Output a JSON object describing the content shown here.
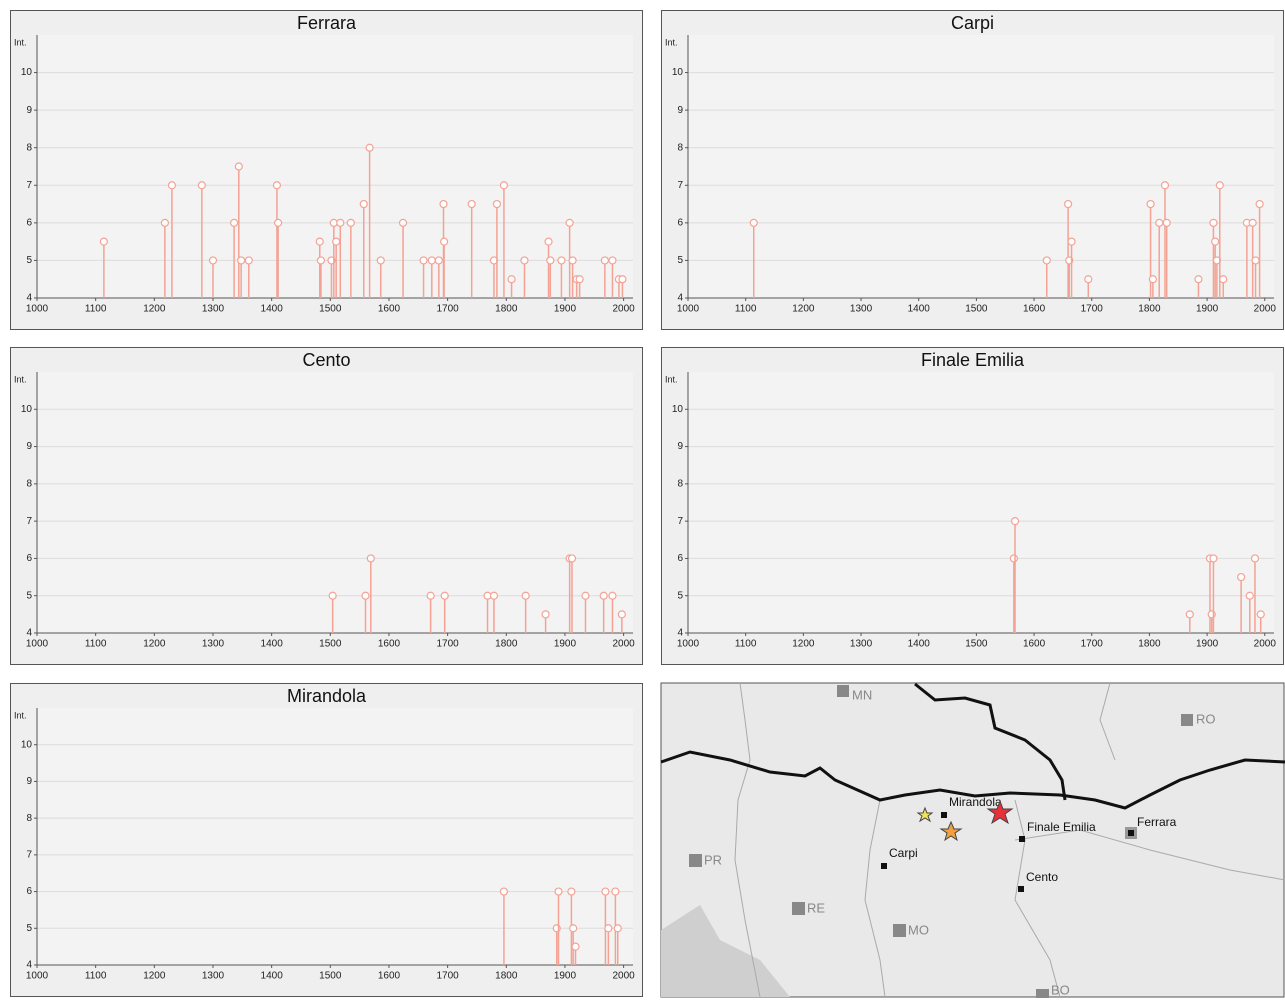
{
  "chart_data": [
    {
      "type": "stem",
      "title": "Ferrara",
      "y_label": "Int.",
      "color": "#f3a294",
      "x": [
        1114,
        1218,
        1230,
        1281,
        1300,
        1336,
        1344,
        1348,
        1361,
        1409,
        1411,
        1482,
        1484,
        1502,
        1506,
        1510,
        1517,
        1535,
        1557,
        1567,
        1586,
        1624,
        1659,
        1673,
        1685,
        1693,
        1694,
        1741,
        1779,
        1784,
        1796,
        1809,
        1831,
        1872,
        1875,
        1894,
        1908,
        1913,
        1920,
        1925,
        1968,
        1981,
        1992,
        1998
      ],
      "values": [
        5.5,
        6,
        7,
        7,
        5,
        6,
        7.5,
        5,
        5,
        7,
        6,
        5.5,
        5,
        5,
        6,
        5.5,
        6,
        6,
        6.5,
        8,
        5,
        6,
        5,
        5,
        5,
        6.5,
        5.5,
        6.5,
        5,
        6.5,
        7,
        4.5,
        5,
        5.5,
        5,
        5,
        6,
        5,
        4.5,
        4.5,
        5,
        5,
        4.5,
        4.5
      ],
      "xlim": [
        1000,
        2016
      ],
      "ylim": [
        4,
        11
      ],
      "xticks": [
        1000,
        1100,
        1200,
        1300,
        1400,
        1500,
        1600,
        1700,
        1800,
        1900,
        2000
      ],
      "yticks": [
        4,
        5,
        6,
        7,
        8,
        9,
        10
      ],
      "grid": true
    },
    {
      "type": "stem",
      "title": "Carpi",
      "y_label": "Int.",
      "color": "#f3a294",
      "x": [
        1114,
        1622,
        1659,
        1661,
        1665,
        1694,
        1802,
        1806,
        1817,
        1827,
        1830,
        1885,
        1911,
        1914,
        1917,
        1922,
        1928,
        1969,
        1979,
        1984,
        1991
      ],
      "values": [
        6,
        5,
        6.5,
        5,
        5.5,
        4.5,
        6.5,
        4.5,
        6,
        7,
        6,
        4.5,
        6,
        5.5,
        5,
        7,
        4.5,
        6,
        6,
        5,
        6.5
      ],
      "xlim": [
        1000,
        2016
      ],
      "ylim": [
        4,
        11
      ],
      "xticks": [
        1000,
        1100,
        1200,
        1300,
        1400,
        1500,
        1600,
        1700,
        1800,
        1900,
        2000
      ],
      "yticks": [
        4,
        5,
        6,
        7,
        8,
        9,
        10
      ],
      "grid": true
    },
    {
      "type": "stem",
      "title": "Cento",
      "y_label": "Int.",
      "color": "#f3a294",
      "x": [
        1504,
        1560,
        1569,
        1671,
        1695,
        1768,
        1779,
        1833,
        1867,
        1908,
        1912,
        1935,
        1966,
        1981,
        1997
      ],
      "values": [
        5,
        5,
        6,
        5,
        5,
        5,
        5,
        5,
        4.5,
        6,
        6,
        5,
        5,
        5,
        4.5
      ],
      "xlim": [
        1000,
        2016
      ],
      "ylim": [
        4,
        11
      ],
      "xticks": [
        1000,
        1100,
        1200,
        1300,
        1400,
        1500,
        1600,
        1700,
        1800,
        1900,
        2000
      ],
      "yticks": [
        4,
        5,
        6,
        7,
        8,
        9,
        10
      ],
      "grid": true
    },
    {
      "type": "stem",
      "title": "Finale Emilia",
      "y_label": "Int.",
      "color": "#f3a294",
      "x": [
        1565,
        1567,
        1870,
        1905,
        1908,
        1911,
        1959,
        1974,
        1983,
        1993
      ],
      "values": [
        6,
        7,
        4.5,
        6,
        4.5,
        6,
        5.5,
        5,
        6,
        4.5
      ],
      "xlim": [
        1000,
        2016
      ],
      "ylim": [
        4,
        11
      ],
      "xticks": [
        1000,
        1100,
        1200,
        1300,
        1400,
        1500,
        1600,
        1700,
        1800,
        1900,
        2000
      ],
      "yticks": [
        4,
        5,
        6,
        7,
        8,
        9,
        10
      ],
      "grid": true
    },
    {
      "type": "stem",
      "title": "Mirandola",
      "y_label": "Int.",
      "color": "#f3a294",
      "x": [
        1796,
        1886,
        1889,
        1911,
        1914,
        1918,
        1969,
        1974,
        1986,
        1990
      ],
      "values": [
        6,
        5,
        6,
        6,
        5,
        4.5,
        6,
        5,
        6,
        5
      ],
      "xlim": [
        1000,
        2016
      ],
      "ylim": [
        4,
        11
      ],
      "xticks": [
        1000,
        1100,
        1200,
        1300,
        1400,
        1500,
        1600,
        1700,
        1800,
        1900,
        2000
      ],
      "yticks": [
        4,
        5,
        6,
        7,
        8,
        9,
        10
      ],
      "grid": true
    }
  ],
  "map": {
    "labels": [
      "MN",
      "RO",
      "Mirandola",
      "Finale Emilia",
      "Ferrara",
      "Carpi",
      "Cento",
      "PR",
      "RE",
      "MO",
      "BO"
    ]
  }
}
